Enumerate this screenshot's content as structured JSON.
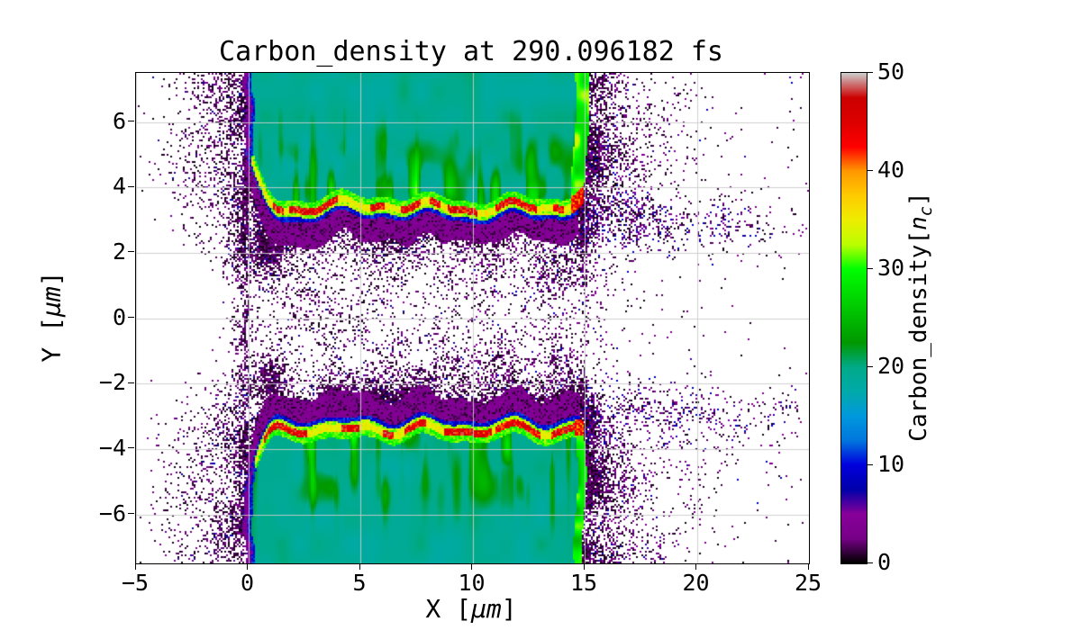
{
  "title": "Carbon_density at 290.096182 fs",
  "axes": {
    "xlabel": {
      "pre": "X [",
      "unit": "μm",
      "post": "]"
    },
    "ylabel": {
      "pre": "Y [",
      "unit": "μm",
      "post": "]"
    },
    "x_ticks": [
      {
        "v": -5,
        "label": "−5"
      },
      {
        "v": 0,
        "label": "0"
      },
      {
        "v": 5,
        "label": "5"
      },
      {
        "v": 10,
        "label": "10"
      },
      {
        "v": 15,
        "label": "15"
      },
      {
        "v": 20,
        "label": "20"
      },
      {
        "v": 25,
        "label": "25"
      }
    ],
    "y_ticks": [
      {
        "v": 6,
        "label": "6"
      },
      {
        "v": 4,
        "label": "4"
      },
      {
        "v": 2,
        "label": "2"
      },
      {
        "v": 0,
        "label": "0"
      },
      {
        "v": -2,
        "label": "−2"
      },
      {
        "v": -4,
        "label": "−4"
      },
      {
        "v": -6,
        "label": "−6"
      }
    ]
  },
  "colorbar": {
    "label": {
      "pre": "Carbon_density[",
      "var": "n",
      "sub": "c",
      "post": "]"
    },
    "ticks": [
      {
        "v": 0,
        "label": "0"
      },
      {
        "v": 10,
        "label": "10"
      },
      {
        "v": 20,
        "label": "20"
      },
      {
        "v": 30,
        "label": "30"
      },
      {
        "v": 40,
        "label": "40"
      },
      {
        "v": 50,
        "label": "50"
      }
    ],
    "min": 0,
    "max": 50
  },
  "style": {
    "background": "#ffffff",
    "grid_color": "#cccccc",
    "axis_color": "#000000",
    "slab_teal": "#00aa88",
    "ridge_red": "#ff0000",
    "band_purple": "#770088",
    "band_blue": "#0000cc"
  },
  "colormap_stops": [
    [
      0.0,
      "#000000"
    ],
    [
      0.05,
      "#770088"
    ],
    [
      0.1,
      "#880099"
    ],
    [
      0.15,
      "#0000aa"
    ],
    [
      0.2,
      "#0000dd"
    ],
    [
      0.25,
      "#0077dd"
    ],
    [
      0.3,
      "#0099dd"
    ],
    [
      0.35,
      "#00aaaa"
    ],
    [
      0.4,
      "#00aa88"
    ],
    [
      0.45,
      "#009900"
    ],
    [
      0.5,
      "#00bb00"
    ],
    [
      0.55,
      "#00dd00"
    ],
    [
      0.6,
      "#00ff00"
    ],
    [
      0.65,
      "#bbff00"
    ],
    [
      0.7,
      "#eeee00"
    ],
    [
      0.75,
      "#ffcc00"
    ],
    [
      0.8,
      "#ff9900"
    ],
    [
      0.85,
      "#ff0000"
    ],
    [
      0.9,
      "#dd0000"
    ],
    [
      0.95,
      "#cc0000"
    ],
    [
      1.0,
      "#cccccc"
    ]
  ],
  "chart_data": {
    "type": "heatmap",
    "title": "Carbon_density at 290.096182 fs",
    "time_fs": 290.096182,
    "xlabel": "X [μm]",
    "ylabel": "Y [μm]",
    "xlim": [
      -5,
      25
    ],
    "ylim": [
      -7.5,
      7.5
    ],
    "colorbar_label": "Carbon_density[n_c]",
    "vmin": 0,
    "vmax": 50,
    "colormap": "nipy_spectral",
    "grid": true,
    "legend": "none",
    "features": {
      "description": "Two flat carbon slab targets spanning x≈0–15 μm with bulk density ≈20 n_c (teal). Wavy compressed front surfaces at y≈+3.2 μm (top slab) and y≈−3.2 μm (bottom slab) form high-density ridges peaking ≈45–50 n_c (yellow/red blobs), bordered on the vacuum side by thin blue (≈10 n_c) and purple (≈3–6 n_c) expansion layers. Low-density scattered plasma (≲5 n_c, black/purple speckle) fills the central gap and blows off to the left of x≈0 and right of x≈15, extending to x≈23.5. Bright green/yellow rim on the right slab edges near x≈14.5–15.",
      "slabs": [
        {
          "name": "top",
          "x_range": [
            0,
            15
          ],
          "y_range": [
            3.1,
            7.5
          ],
          "bulk_density_nc": 20,
          "front_surface_y_um": 3.2,
          "surface_peak_density_nc": 46
        },
        {
          "name": "bottom",
          "x_range": [
            0,
            15
          ],
          "y_range": [
            -7.5,
            -3.2
          ],
          "bulk_density_nc": 20,
          "front_surface_y_um": -3.2,
          "surface_peak_density_nc": 46
        }
      ],
      "vacuum_gap_y_um": [
        -2.5,
        2.5
      ],
      "scattered_plasma_density_nc": [
        0,
        8
      ]
    }
  }
}
